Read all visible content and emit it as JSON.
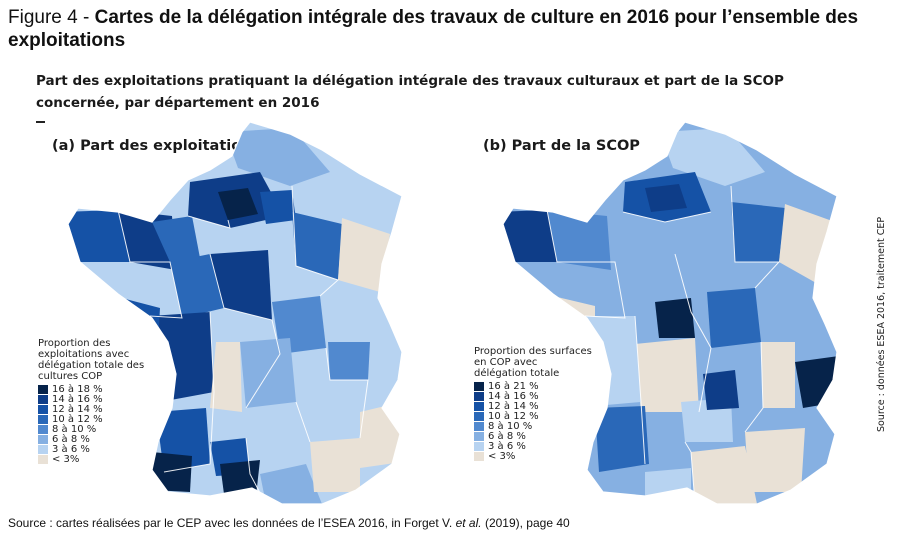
{
  "figure": {
    "number": "Figure 4 - ",
    "title": "Cartes de la délégation intégrale des travaux de culture en 2016 pour l’ensemble des exploitations"
  },
  "subtitle": "Part des exploitations pratiquant la délégation intégrale des travaux culturaux et part de la SCOP concernée, par département en 2016",
  "palette": [
    "#06234a",
    "#0e3d88",
    "#1552a6",
    "#2a68b8",
    "#5189cf",
    "#86b0e2",
    "#b7d3f1",
    "#e9e1d6"
  ],
  "map_a": {
    "title": "(a) Part des exploitations",
    "legend_title": "Proportion des exploitations avec délégation totale des cultures COP",
    "legend_items": [
      "16 à 18 %",
      "14 à 16 %",
      "12 à 14 %",
      "10 à 12 %",
      "8 à 10 %",
      "6 à 8 %",
      "3 à 6 %",
      "< 3%"
    ]
  },
  "map_b": {
    "title": "(b) Part de la SCOP",
    "legend_title": "Proportion des surfaces en COP avec délégation totale",
    "legend_items": [
      "16 à 21 %",
      "14 à 16 %",
      "12 à 14 %",
      "10 à 12 %",
      "8 à 10 %",
      "6 à 8 %",
      "3 à 6 %",
      "< 3%"
    ]
  },
  "side_source": "Source : données ESEA 2016, traitement CEP",
  "footer": {
    "prefix": "Source : cartes réalisées par le CEP avec les données de l’ESEA 2016, in Forget V. ",
    "etal": "et al.",
    "suffix": " (2019), page 40"
  }
}
